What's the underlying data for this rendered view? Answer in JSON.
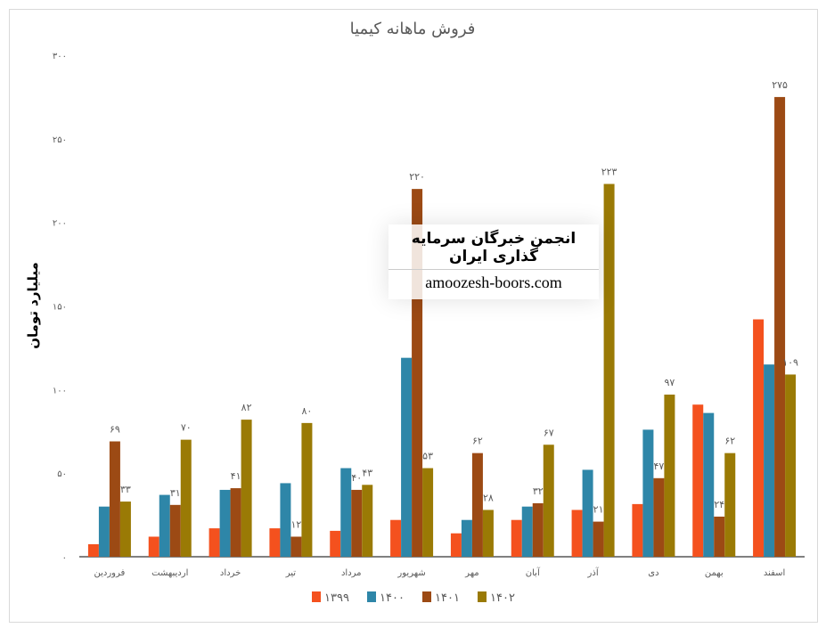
{
  "chart_data": {
    "type": "bar",
    "title": "فروش ماهانه کیمیا",
    "ylabel": "میلیارد تومان",
    "xlabel": "",
    "ylim": [
      0,
      300
    ],
    "yticks": [
      "۰",
      "۵۰",
      "۱۰۰",
      "۱۵۰",
      "۲۰۰",
      "۲۵۰",
      "۳۰۰"
    ],
    "ytick_values": [
      0,
      50,
      100,
      150,
      200,
      250,
      300
    ],
    "grid": false,
    "legend_position": "bottom",
    "categories": [
      "فروردین",
      "اردیبهشت",
      "خرداد",
      "تیر",
      "مرداد",
      "شهریور",
      "مهر",
      "آبان",
      "آذر",
      "دی",
      "بهمن",
      "اسفند"
    ],
    "series": [
      {
        "name": "۱۳۹۹",
        "color": "#f4511e",
        "values": [
          7.5,
          12,
          17,
          17,
          15.5,
          22,
          14,
          22,
          28,
          31.5,
          91,
          142
        ],
        "labels": null
      },
      {
        "name": "۱۴۰۰",
        "color": "#2e86a8",
        "values": [
          30,
          37,
          40,
          44,
          53,
          119,
          22,
          30,
          52,
          76,
          86,
          115
        ],
        "labels": null
      },
      {
        "name": "۱۴۰۱",
        "color": "#9c4a14",
        "values": [
          69,
          31,
          41,
          12,
          40,
          220,
          62,
          32,
          21,
          47,
          24,
          275
        ],
        "labels": [
          "۶۹",
          "۳۱",
          "۴۱",
          "۱۲",
          "۴۰",
          "۲۲۰",
          "۶۲",
          "۳۲",
          "۲۱",
          "۴۷",
          "۲۴",
          "۲۷۵"
        ]
      },
      {
        "name": "۱۴۰۲",
        "color": "#9a7a05",
        "values": [
          33,
          70,
          82,
          80,
          43,
          53,
          28,
          67,
          223,
          97,
          62,
          109
        ],
        "labels": [
          "۳۳",
          "۷۰",
          "۸۲",
          "۸۰",
          "۴۳",
          "۵۳",
          "۲۸",
          "۶۷",
          "۲۲۳",
          "۹۷",
          "۶۲",
          "۱۰۹"
        ]
      }
    ]
  },
  "watermark": {
    "title": "انجمن خبرگان سرمایه گذاری ایران",
    "site": "amoozesh-boors.com"
  }
}
